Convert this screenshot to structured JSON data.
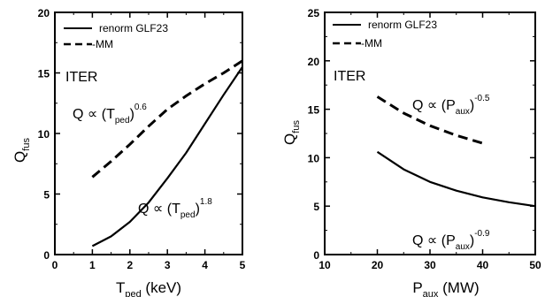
{
  "chart_data": [
    {
      "type": "line",
      "ylabel": "Q",
      "ylabel_sub": "fus",
      "xlabel": "T",
      "xlabel_sub": "ped",
      "xlabel_unit": "(keV)",
      "xlim": [
        0,
        5
      ],
      "ylim": [
        0,
        20
      ],
      "xticks": [
        0,
        1,
        2,
        3,
        4,
        5
      ],
      "yticks": [
        0,
        5,
        10,
        15,
        20
      ],
      "grid": false,
      "legend_position": "top-left",
      "series": [
        {
          "name": "renorm GLF23",
          "style": "solid",
          "x": [
            1.0,
            1.5,
            2.0,
            2.5,
            3.0,
            3.5,
            4.0,
            4.5,
            5.0
          ],
          "y": [
            0.7,
            1.5,
            2.7,
            4.3,
            6.3,
            8.4,
            10.8,
            13.2,
            15.5
          ]
        },
        {
          "name": "MM",
          "style": "dashed",
          "x": [
            1.0,
            1.5,
            2.0,
            2.5,
            3.0,
            3.5,
            4.0,
            4.5,
            5.0
          ],
          "y": [
            6.4,
            7.7,
            9.1,
            10.6,
            12.0,
            13.1,
            14.1,
            15.0,
            16.0
          ]
        }
      ],
      "annotations": [
        {
          "label": "ITER"
        },
        {
          "base": "Q ∝ (T",
          "sub": "ped",
          "close": ")",
          "sup": "0.6"
        },
        {
          "base": "Q ∝ (T",
          "sub": "ped",
          "close": ")",
          "sup": "1.8"
        }
      ]
    },
    {
      "type": "line",
      "ylabel": "Q",
      "ylabel_sub": "fus",
      "xlabel": "P",
      "xlabel_sub": "aux",
      "xlabel_unit": "(MW)",
      "xlim": [
        10,
        50
      ],
      "ylim": [
        0,
        25
      ],
      "xticks": [
        10,
        20,
        30,
        40,
        50
      ],
      "yticks": [
        0,
        5,
        10,
        15,
        20,
        25
      ],
      "grid": false,
      "legend_position": "top-left",
      "series": [
        {
          "name": "renorm GLF23",
          "style": "solid",
          "x": [
            20,
            25,
            30,
            35,
            40,
            45,
            50
          ],
          "y": [
            10.6,
            8.8,
            7.5,
            6.6,
            5.9,
            5.4,
            5.0
          ]
        },
        {
          "name": "MM",
          "style": "dashed",
          "x": [
            20,
            25,
            30,
            35,
            40
          ],
          "y": [
            16.3,
            14.6,
            13.3,
            12.3,
            11.5
          ]
        }
      ],
      "annotations": [
        {
          "label": "ITER"
        },
        {
          "base": "Q ∝ (P",
          "sub": "aux",
          "close": ")",
          "sup": "-0.5"
        },
        {
          "base": "Q ∝ (P",
          "sub": "aux",
          "close": ")",
          "sup": "-0.9"
        }
      ]
    }
  ]
}
